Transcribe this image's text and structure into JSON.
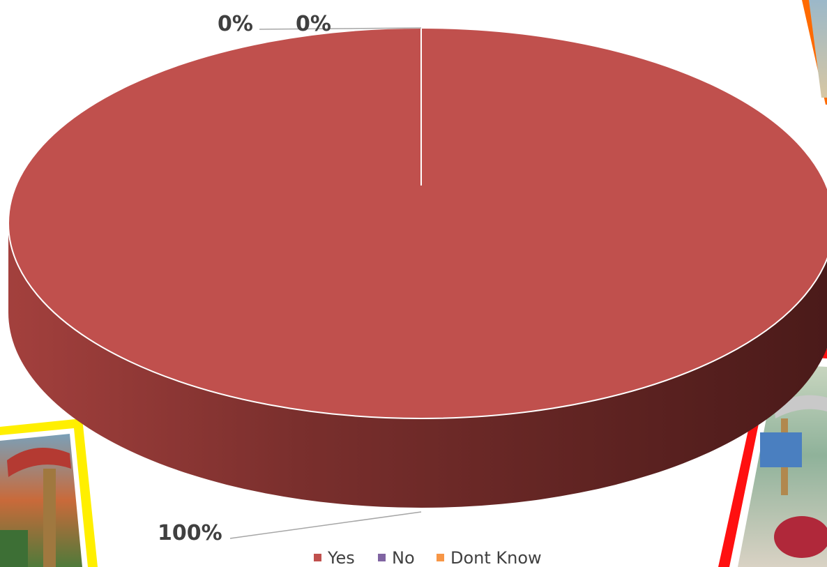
{
  "chart_data": {
    "type": "pie",
    "style": "3d",
    "categories": [
      "Yes",
      "No",
      "Dont Know"
    ],
    "values": [
      100,
      0,
      0
    ],
    "data_labels": [
      "100%",
      "0%",
      "0%"
    ],
    "colors": [
      "#c0504d",
      "#8064a2",
      "#f79646"
    ],
    "legend": {
      "position": "bottom",
      "entries": [
        "Yes",
        "No",
        "Dont Know"
      ]
    }
  },
  "decorations": {
    "photo_frames": [
      {
        "name": "top-right-photo",
        "frame_color": "#ff6a00"
      },
      {
        "name": "bottom-left-photo",
        "frame_color": "#ffef00"
      },
      {
        "name": "bottom-right-photo",
        "frame_color": "#ff1010"
      }
    ]
  }
}
